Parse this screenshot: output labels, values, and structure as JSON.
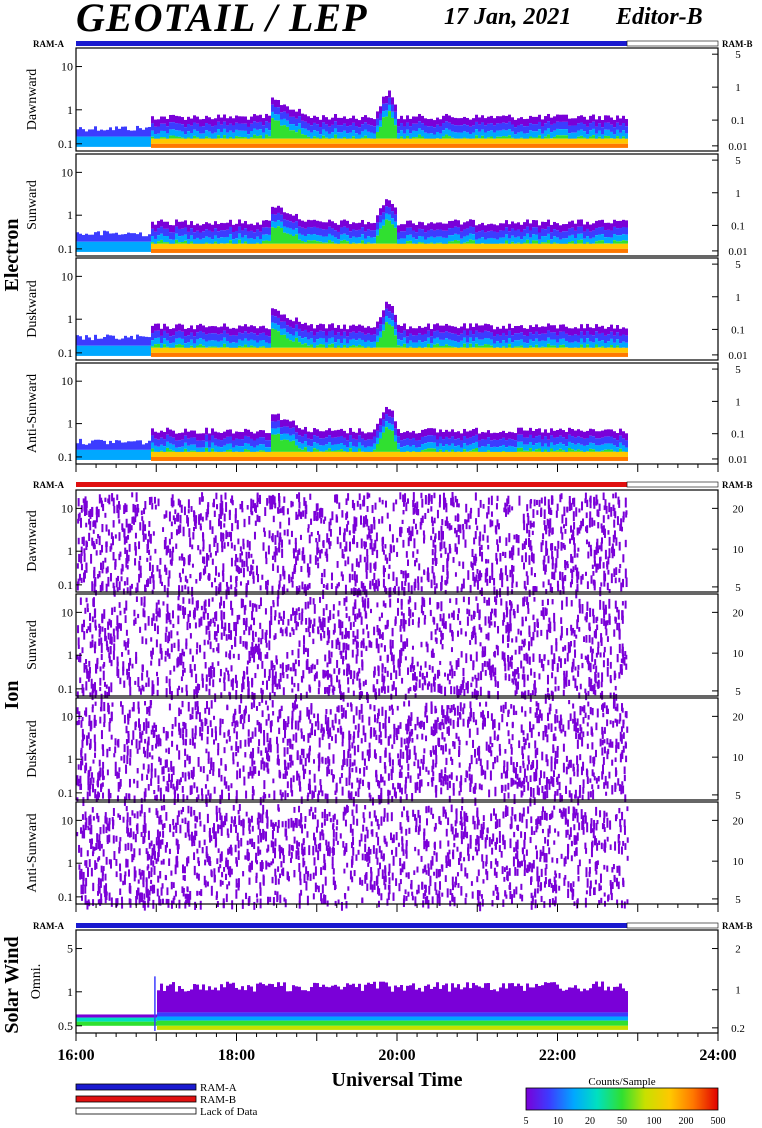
{
  "header": {
    "title": "GEOTAIL / LEP",
    "date": "17 Jan, 2021",
    "editor": "Editor-B"
  },
  "groups": {
    "electron": "Electron",
    "ion": "Ion",
    "solar_wind": "Solar Wind"
  },
  "ram_labels": {
    "left": "RAM-A",
    "right": "RAM-B"
  },
  "colors": {
    "ram_a": "#1a1ad0",
    "ram_b": "#e01010",
    "lack": "#ffffff",
    "spectrum": [
      "#7a00d8",
      "#3c3cff",
      "#00a8ff",
      "#00e0c0",
      "#30e030",
      "#c8e000",
      "#ffc800",
      "#ff7800",
      "#e00000"
    ]
  },
  "chart_data": {
    "type": "heatmap",
    "xlabel": "Universal Time",
    "x_range": [
      "16:00",
      "24:00"
    ],
    "x_ticks": [
      "16:00",
      "18:00",
      "20:00",
      "22:00",
      "24:00"
    ],
    "data_end": "22:52",
    "panels": [
      {
        "group": "Electron",
        "label": "Dawnward",
        "left_ticks": [
          "10",
          "1",
          "0.1"
        ],
        "right_ticks": [
          "5",
          "1",
          "0.1",
          "0.01"
        ],
        "bar": "ram_a"
      },
      {
        "group": "Electron",
        "label": "Sunward",
        "left_ticks": [
          "10",
          "1",
          "0.1"
        ],
        "right_ticks": [
          "5",
          "1",
          "0.1",
          "0.01"
        ]
      },
      {
        "group": "Electron",
        "label": "Duskward",
        "left_ticks": [
          "10",
          "1",
          "0.1"
        ],
        "right_ticks": [
          "5",
          "1",
          "0.1",
          "0.01"
        ]
      },
      {
        "group": "Electron",
        "label": "Anti-Sunward",
        "left_ticks": [
          "10",
          "1",
          "0.1"
        ],
        "right_ticks": [
          "5",
          "1",
          "0.1",
          "0.01"
        ]
      },
      {
        "group": "Ion",
        "label": "Dawnward",
        "left_ticks": [
          "10",
          "1",
          "0.1"
        ],
        "right_ticks": [
          "20",
          "10",
          "5"
        ],
        "bar": "ram_b"
      },
      {
        "group": "Ion",
        "label": "Sunward",
        "left_ticks": [
          "10",
          "1",
          "0.1"
        ],
        "right_ticks": [
          "20",
          "10",
          "5"
        ]
      },
      {
        "group": "Ion",
        "label": "Duskward",
        "left_ticks": [
          "10",
          "1",
          "0.1"
        ],
        "right_ticks": [
          "20",
          "10",
          "5"
        ]
      },
      {
        "group": "Ion",
        "label": "Anti-Sunward",
        "left_ticks": [
          "10",
          "1",
          "0.1"
        ],
        "right_ticks": [
          "20",
          "10",
          "5"
        ]
      },
      {
        "group": "Solar Wind",
        "label": "Omni.",
        "left_ticks": [
          "5",
          "1",
          "0.5"
        ],
        "right_ticks": [
          "2",
          "1",
          "0.2"
        ],
        "bar": "ram_a"
      }
    ],
    "legend": {
      "ram_a": "RAM-A",
      "ram_b": "RAM-B",
      "lack": "Lack of Data"
    },
    "colorbar": {
      "title": "Counts/Sample",
      "ticks": [
        "5",
        "10",
        "20",
        "50",
        "100",
        "200",
        "500"
      ]
    }
  }
}
